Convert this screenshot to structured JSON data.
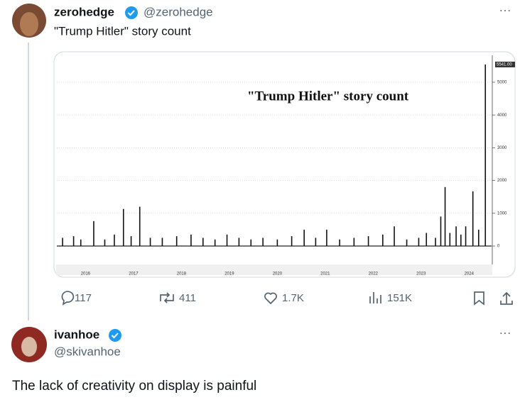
{
  "post": {
    "name": "zerohedge",
    "handle": "@zerohedge",
    "text": "\"Trump Hitler\" story count",
    "stats": {
      "replies": "117",
      "reposts": "411",
      "likes": "1.7K",
      "views": "151K"
    }
  },
  "chart": {
    "type": "bar",
    "title": "\"Trump Hitler\" story count",
    "x": [
      2016.02,
      2016.25,
      2016.4,
      2016.67,
      2016.9,
      2017.1,
      2017.29,
      2017.45,
      2017.63,
      2017.85,
      2018.1,
      2018.4,
      2018.7,
      2018.95,
      2019.2,
      2019.45,
      2019.7,
      2019.95,
      2020.2,
      2020.5,
      2020.8,
      2021.06,
      2021.3,
      2021.53,
      2021.8,
      2022.1,
      2022.4,
      2022.7,
      2022.94,
      2023.2,
      2023.45,
      2023.61,
      2023.8,
      2023.91,
      2024.0,
      2024.1,
      2024.23,
      2024.33,
      2024.43,
      2024.58,
      2024.7,
      2024.84
    ],
    "values": [
      250,
      300,
      200,
      760,
      200,
      350,
      1130,
      300,
      1200,
      250,
      250,
      300,
      350,
      250,
      200,
      350,
      250,
      200,
      250,
      200,
      300,
      500,
      250,
      500,
      200,
      250,
      300,
      350,
      600,
      200,
      250,
      400,
      250,
      900,
      1800,
      400,
      600,
      350,
      600,
      1670,
      500,
      5541
    ],
    "xlim": [
      2015.9,
      2024.97
    ],
    "ylim": [
      0,
      5800
    ],
    "xticks": [
      {
        "value": 2016.5,
        "label": "2016"
      },
      {
        "value": 2017.5,
        "label": "2017"
      },
      {
        "value": 2018.5,
        "label": "2018"
      },
      {
        "value": 2019.5,
        "label": "2019"
      },
      {
        "value": 2020.5,
        "label": "2020"
      },
      {
        "value": 2021.5,
        "label": "2021"
      },
      {
        "value": 2022.5,
        "label": "2022"
      },
      {
        "value": 2023.5,
        "label": "2023"
      },
      {
        "value": 2024.5,
        "label": "2024"
      }
    ],
    "yticks": [
      0,
      1000,
      2000,
      3000,
      4000,
      5000
    ],
    "last_value_label": "5541.00",
    "color": "#111111",
    "grid": true
  },
  "reply": {
    "name": "ivanhoe",
    "handle": "@skivanhoe",
    "text": "The lack of creativity on display is painful"
  }
}
